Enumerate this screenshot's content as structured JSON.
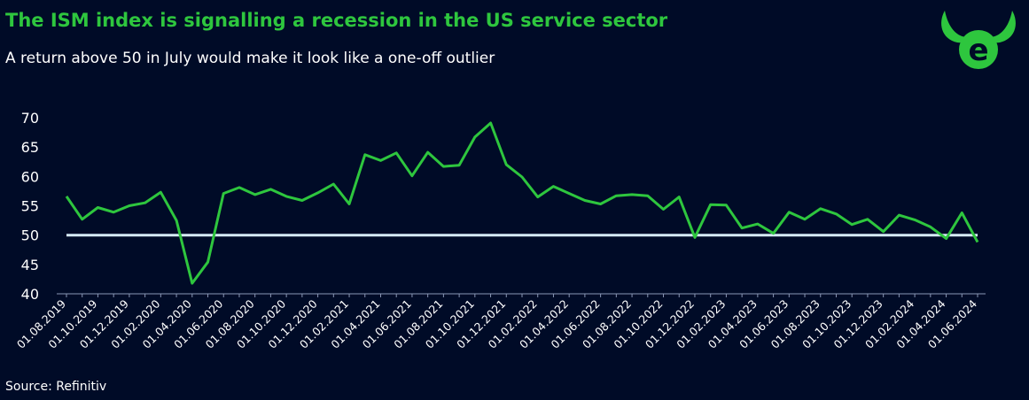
{
  "title": "The ISM index is signalling a recession in the US service sector",
  "subtitle": "A return above 50 in July would make it look like a one-off outlier",
  "source": "Source: Refinitiv",
  "logo": {
    "icon": "bull-horns-e-logo-icon",
    "color": "#2ec63e"
  },
  "colors": {
    "background": "#000b27",
    "series": "#2ec63e",
    "threshold": "#d6ebf7",
    "axis": "#8a97b5"
  },
  "chart_data": {
    "type": "line",
    "xlabel": "",
    "ylabel": "",
    "ylim": [
      40,
      70
    ],
    "yticks": [
      40,
      45,
      50,
      55,
      60,
      65,
      70
    ],
    "grid": false,
    "legend": "none",
    "x": [
      "01.08.2019",
      "01.09.2019",
      "01.10.2019",
      "01.11.2019",
      "01.12.2019",
      "01.01.2020",
      "01.02.2020",
      "01.03.2020",
      "01.04.2020",
      "01.05.2020",
      "01.06.2020",
      "01.07.2020",
      "01.08.2020",
      "01.09.2020",
      "01.10.2020",
      "01.11.2020",
      "01.12.2020",
      "01.01.2021",
      "01.02.2021",
      "01.03.2021",
      "01.04.2021",
      "01.05.2021",
      "01.06.2021",
      "01.07.2021",
      "01.08.2021",
      "01.09.2021",
      "01.10.2021",
      "01.11.2021",
      "01.12.2021",
      "01.01.2022",
      "01.02.2022",
      "01.03.2022",
      "01.04.2022",
      "01.05.2022",
      "01.06.2022",
      "01.07.2022",
      "01.08.2022",
      "01.09.2022",
      "01.10.2022",
      "01.11.2022",
      "01.12.2022",
      "01.01.2023",
      "01.02.2023",
      "01.03.2023",
      "01.04.2023",
      "01.05.2023",
      "01.06.2023",
      "01.07.2023",
      "01.08.2023",
      "01.09.2023",
      "01.10.2023",
      "01.11.2023",
      "01.12.2023",
      "01.01.2024",
      "01.02.2024",
      "01.03.2024",
      "01.04.2024",
      "01.05.2024",
      "01.06.2024"
    ],
    "xtick_labels": [
      "01.08.2019",
      "01.10.2019",
      "01.12.2019",
      "01.02.2020",
      "01.04.2020",
      "01.06.2020",
      "01.08.2020",
      "01.10.2020",
      "01.12.2020",
      "01.02.2021",
      "01.04.2021",
      "01.06.2021",
      "01.08.2021",
      "01.10.2021",
      "01.12.2021",
      "01.02.2022",
      "01.04.2022",
      "01.06.2022",
      "01.08.2022",
      "01.10.2022",
      "01.12.2022",
      "01.02.2023",
      "01.04.2023",
      "01.06.2023",
      "01.08.2023",
      "01.10.2023",
      "01.12.2023",
      "01.02.2024",
      "01.04.2024",
      "01.06.2024"
    ],
    "series": [
      {
        "values": [
          56.6,
          52.7,
          54.7,
          53.9,
          55.0,
          55.5,
          57.3,
          52.5,
          41.8,
          45.4,
          57.1,
          58.1,
          56.9,
          57.8,
          56.6,
          55.9,
          57.2,
          58.7,
          55.3,
          63.7,
          62.7,
          64.0,
          60.1,
          64.1,
          61.7,
          61.9,
          66.7,
          69.1,
          62.0,
          59.9,
          56.5,
          58.3,
          57.1,
          55.9,
          55.3,
          56.7,
          56.9,
          56.7,
          54.4,
          56.5,
          49.6,
          55.2,
          55.1,
          51.2,
          51.9,
          50.3,
          53.9,
          52.7,
          54.5,
          53.6,
          51.8,
          52.7,
          50.6,
          53.4,
          52.6,
          51.4,
          49.4,
          53.8,
          48.8
        ]
      },
      {
        "values": [
          50,
          50,
          50,
          50,
          50,
          50,
          50,
          50,
          50,
          50,
          50,
          50,
          50,
          50,
          50,
          50,
          50,
          50,
          50,
          50,
          50,
          50,
          50,
          50,
          50,
          50,
          50,
          50,
          50,
          50,
          50,
          50,
          50,
          50,
          50,
          50,
          50,
          50,
          50,
          50,
          50,
          50,
          50,
          50,
          50,
          50,
          50,
          50,
          50,
          50,
          50,
          50,
          50,
          50,
          50,
          50,
          50,
          50,
          50
        ]
      }
    ]
  }
}
